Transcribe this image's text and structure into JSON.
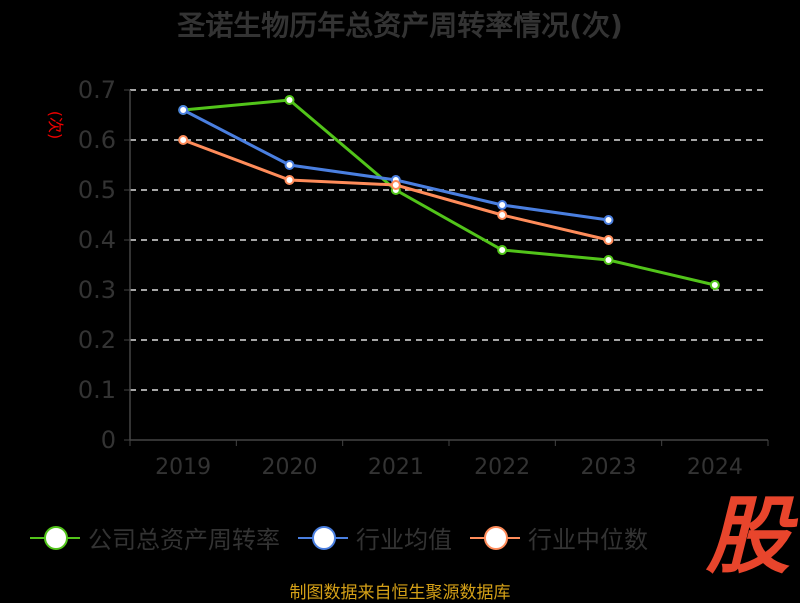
{
  "chart_data": {
    "type": "line",
    "title": "圣诺生物历年总资产周转率情况(次)",
    "ylabel": "(次)",
    "xlabel": "",
    "categories": [
      "2019",
      "2020",
      "2021",
      "2022",
      "2023",
      "2024"
    ],
    "ylim": [
      0,
      0.7
    ],
    "yticks": [
      "0",
      "0.1",
      "0.2",
      "0.3",
      "0.4",
      "0.5",
      "0.6",
      "0.7"
    ],
    "grid": true,
    "legend_position": "bottom",
    "series": [
      {
        "name": "公司总资产周转率",
        "color": "#52c41a",
        "values": [
          0.66,
          0.68,
          0.5,
          0.38,
          0.36,
          0.31
        ]
      },
      {
        "name": "行业均值",
        "color": "#4a7fe0",
        "values": [
          0.66,
          0.55,
          0.52,
          0.47,
          0.44,
          null
        ]
      },
      {
        "name": "行业中位数",
        "color": "#ff8c5a",
        "values": [
          0.6,
          0.52,
          0.51,
          0.45,
          0.4,
          null
        ]
      }
    ]
  },
  "source": "制图数据来自恒生聚源数据库",
  "logo_text": "股"
}
